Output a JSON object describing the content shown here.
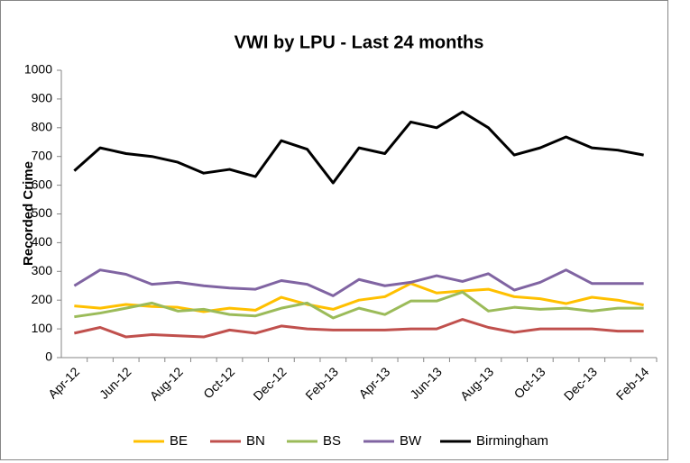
{
  "chart_data": {
    "type": "line",
    "title": "VWI by LPU - Last 24 months",
    "y_label": "Recorded Crime",
    "categories": [
      "Apr-12",
      null,
      "Jun-12",
      null,
      "Aug-12",
      null,
      "Oct-12",
      null,
      "Dec-12",
      null,
      "Feb-13",
      null,
      "Apr-13",
      null,
      "Jun-13",
      null,
      "Aug-13",
      null,
      "Oct-13",
      null,
      "Dec-13",
      null,
      "Feb-14"
    ],
    "series": [
      {
        "name": "BE",
        "color": "#ffc000",
        "values": [
          180,
          172,
          185,
          178,
          175,
          160,
          172,
          165,
          210,
          185,
          168,
          200,
          212,
          258,
          225,
          232,
          238,
          212,
          205,
          188,
          210,
          200,
          183
        ]
      },
      {
        "name": "BN",
        "color": "#c0504d",
        "values": [
          85,
          105,
          72,
          80,
          76,
          72,
          96,
          85,
          110,
          100,
          96,
          96,
          96,
          100,
          100,
          133,
          105,
          88,
          100,
          100,
          100,
          92,
          92
        ]
      },
      {
        "name": "BS",
        "color": "#9bbb59",
        "values": [
          142,
          155,
          172,
          190,
          162,
          168,
          150,
          145,
          172,
          190,
          138,
          172,
          150,
          197,
          197,
          228,
          162,
          175,
          168,
          172,
          162,
          172,
          172
        ]
      },
      {
        "name": "BW",
        "color": "#8064a2",
        "values": [
          250,
          305,
          290,
          255,
          262,
          250,
          242,
          238,
          268,
          255,
          215,
          272,
          250,
          262,
          285,
          265,
          292,
          235,
          262,
          305,
          258,
          258,
          258
        ]
      },
      {
        "name": "Birmingham",
        "color": "#000000",
        "values": [
          650,
          730,
          710,
          700,
          680,
          642,
          655,
          630,
          755,
          725,
          608,
          730,
          710,
          820,
          800,
          855,
          800,
          705,
          730,
          768,
          730,
          722,
          705
        ]
      }
    ],
    "ylim": [
      0,
      1000
    ],
    "yticks": [
      0,
      100,
      200,
      300,
      400,
      500,
      600,
      700,
      800,
      900,
      1000
    ],
    "grid": false
  }
}
